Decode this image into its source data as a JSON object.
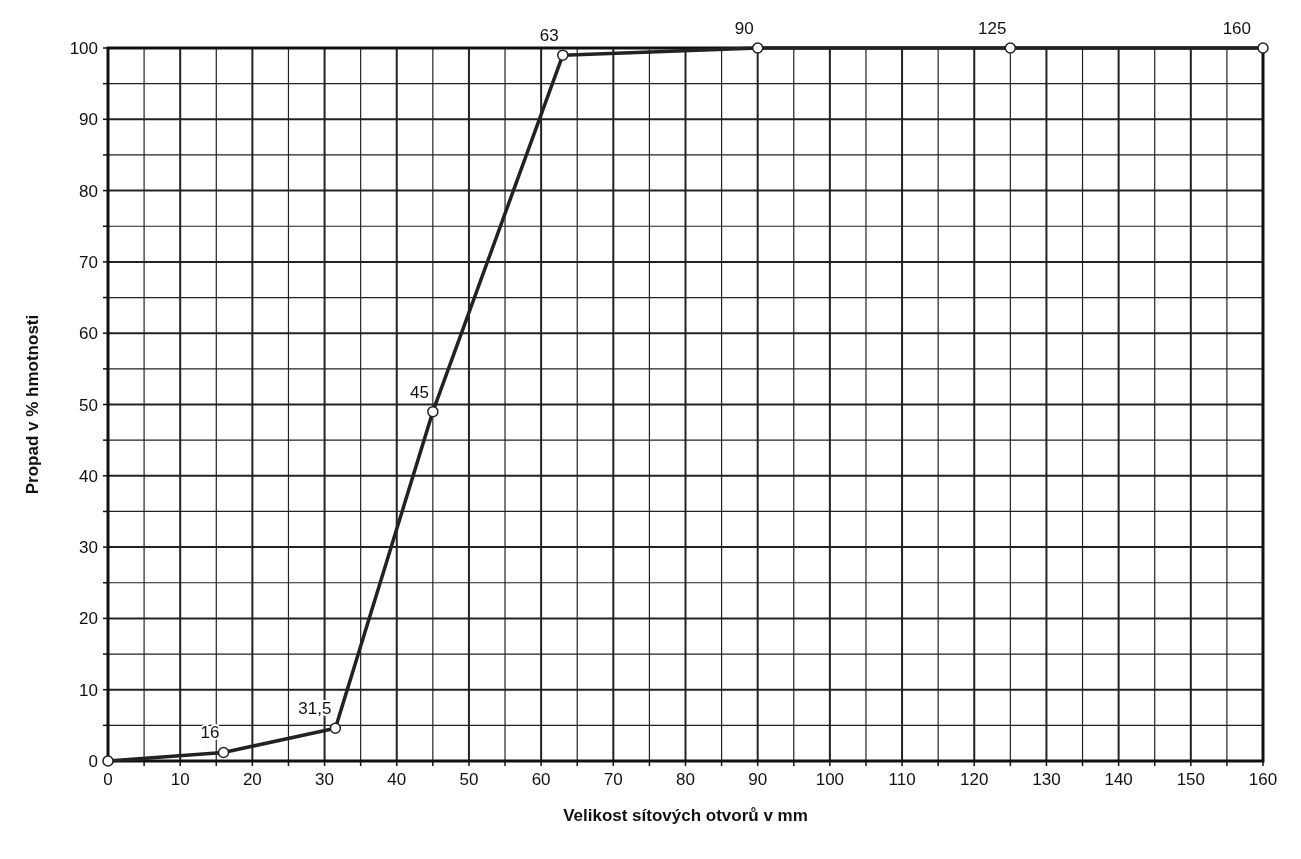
{
  "chart_data": {
    "type": "line",
    "xlabel": "Velikost sítových otvorů v mm",
    "ylabel": "Propad v % hmotnosti",
    "x": [
      0,
      16,
      31.5,
      45,
      63,
      90,
      125,
      160
    ],
    "series": [
      {
        "color": "#222222",
        "values": [
          0,
          1.2,
          4.6,
          49,
          99,
          100,
          100,
          100
        ]
      }
    ],
    "xlim": [
      0,
      160
    ],
    "ylim": [
      0,
      100
    ],
    "xticks": [
      0,
      {
        "value": 5,
        "label": null
      },
      10,
      {
        "value": 15,
        "label": null
      },
      20,
      {
        "value": 25,
        "label": null
      },
      30,
      {
        "value": 35,
        "label": null
      },
      40,
      {
        "value": 45,
        "label": null
      },
      50,
      {
        "value": 55,
        "label": null
      },
      60,
      {
        "value": 65,
        "label": null
      },
      70,
      {
        "value": 75,
        "label": null
      },
      80,
      {
        "value": 85,
        "label": null
      },
      90,
      {
        "value": 95,
        "label": null
      },
      100,
      {
        "value": 105,
        "label": null
      },
      110,
      {
        "value": 115,
        "label": null
      },
      120,
      {
        "value": 125,
        "label": null
      },
      130,
      {
        "value": 135,
        "label": null
      },
      140,
      {
        "value": 145,
        "label": null
      },
      150,
      {
        "value": 155,
        "label": null
      },
      160
    ],
    "yticks": [
      0,
      {
        "value": 5,
        "label": null
      },
      10,
      {
        "value": 15,
        "label": null
      },
      20,
      {
        "value": 25,
        "label": null
      },
      30,
      {
        "value": 35,
        "label": null
      },
      40,
      {
        "value": 45,
        "label": null
      },
      50,
      {
        "value": 55,
        "label": null
      },
      60,
      {
        "value": 65,
        "label": null
      },
      70,
      {
        "value": 75,
        "label": null
      },
      80,
      {
        "value": 85,
        "label": null
      },
      90,
      {
        "value": 95,
        "label": null
      },
      100
    ],
    "grid": true,
    "marker": "circle",
    "line_style": "solid",
    "annotations": [
      {
        "text": "16",
        "x": 16,
        "y": 1.2
      },
      {
        "text": "31,5",
        "x": 31.5,
        "y": 4.6
      },
      {
        "text": "45",
        "x": 45,
        "y": 49
      },
      {
        "text": "63",
        "x": 63,
        "y": 99
      },
      {
        "text": "90",
        "x": 90,
        "y": 100
      },
      {
        "text": "125",
        "x": 125,
        "y": 100
      },
      {
        "text": "160",
        "x": 160,
        "y": 100
      }
    ]
  }
}
